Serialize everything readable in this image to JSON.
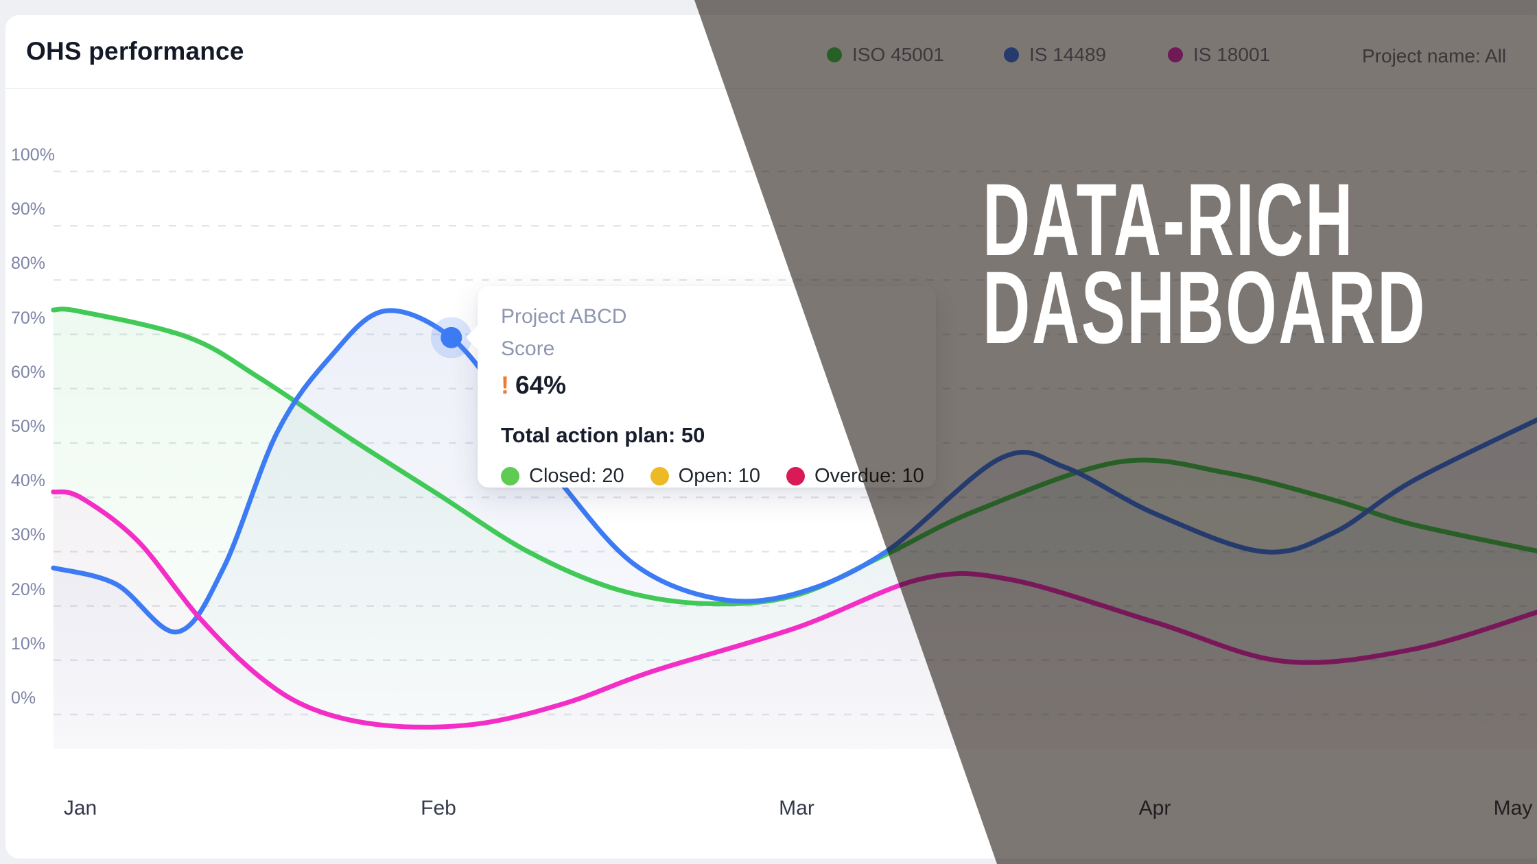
{
  "header": {
    "title": "OHS performance",
    "legend": [
      {
        "label": "ISO 45001",
        "color": "#41c957"
      },
      {
        "label": "IS 14489",
        "color": "#3c7bf3"
      },
      {
        "label": "IS 18001",
        "color": "#e32fc0"
      }
    ],
    "project_filter": "Project name: All"
  },
  "overlay_banner": {
    "line1": "DATA-RICH",
    "line2": "DASHBOARD"
  },
  "tooltip": {
    "title": "Project ABCD",
    "subtitle": "Score",
    "alert_icon": "!",
    "score": "64%",
    "total": "Total action plan: 50",
    "items": [
      {
        "label": "Closed: 20",
        "color": "#5ecb53"
      },
      {
        "label": "Open: 10",
        "color": "#ecba25"
      },
      {
        "label": "Overdue: 10",
        "color": "#d91a56"
      }
    ]
  },
  "chart_data": {
    "type": "line",
    "title": "OHS performance",
    "x_labels": [
      "Jan",
      "Feb",
      "Mar",
      "Apr",
      "May"
    ],
    "y_ticks": [
      {
        "label": "100%",
        "value": 100
      },
      {
        "label": "90%",
        "value": 90
      },
      {
        "label": "80%",
        "value": 80
      },
      {
        "label": "70%",
        "value": 70
      },
      {
        "label": "60%",
        "value": 60
      },
      {
        "label": "50%",
        "value": 50
      },
      {
        "label": "40%",
        "value": 40
      },
      {
        "label": "30%",
        "value": 30
      },
      {
        "label": "20%",
        "value": 20
      },
      {
        "label": "10%",
        "value": 10
      },
      {
        "label": "0%",
        "value": 0
      }
    ],
    "ylim": [
      0,
      100
    ],
    "grid": "dashed-horizontal",
    "legend_position": "top-right",
    "series": [
      {
        "name": "ISO 45001",
        "color": "#41c957",
        "area_top": "rgba(86,200,112,0.13)",
        "area_bottom": "rgba(86,200,112,0.015)",
        "points": [
          [
            -0.075,
            74.5
          ],
          [
            0,
            74.2
          ],
          [
            0.3,
            69.5
          ],
          [
            0.5,
            62
          ],
          [
            0.75,
            51
          ],
          [
            1.0,
            40.5
          ],
          [
            1.25,
            30
          ],
          [
            1.5,
            23
          ],
          [
            1.75,
            20.4
          ],
          [
            2.0,
            22
          ],
          [
            2.25,
            29.5
          ],
          [
            2.5,
            37.5
          ],
          [
            2.9,
            46.5
          ],
          [
            3.2,
            44.5
          ],
          [
            3.5,
            39.5
          ],
          [
            3.72,
            35
          ],
          [
            4.075,
            30
          ]
        ]
      },
      {
        "name": "IS 14489",
        "color": "#3c7bf3",
        "area_top": "rgba(128,148,208,0.18)",
        "area_bottom": "rgba(128,148,208,0.03)",
        "points": [
          [
            -0.075,
            27
          ],
          [
            0.1,
            24
          ],
          [
            0.27,
            15.2
          ],
          [
            0.4,
            27
          ],
          [
            0.55,
            52
          ],
          [
            0.7,
            66
          ],
          [
            0.85,
            74.3
          ],
          [
            1.036,
            69.4
          ],
          [
            1.2,
            56
          ],
          [
            1.35,
            42
          ],
          [
            1.55,
            27.5
          ],
          [
            1.78,
            21.3
          ],
          [
            2.0,
            22.3
          ],
          [
            2.25,
            30
          ],
          [
            2.57,
            47.2
          ],
          [
            2.75,
            45.5
          ],
          [
            3.0,
            37
          ],
          [
            3.3,
            30
          ],
          [
            3.5,
            33.5
          ],
          [
            3.72,
            43
          ],
          [
            4.075,
            54.5
          ]
        ]
      },
      {
        "name": "IS 18001",
        "color": "#f32ec6",
        "area_top": "rgba(238,70,205,0.10)",
        "area_bottom": "rgba(238,70,205,0.015)",
        "points": [
          [
            -0.075,
            41
          ],
          [
            0,
            40
          ],
          [
            0.16,
            32
          ],
          [
            0.33,
            18
          ],
          [
            0.5,
            7
          ],
          [
            0.65,
            1
          ],
          [
            0.85,
            -2
          ],
          [
            1.1,
            -1.8
          ],
          [
            1.35,
            2
          ],
          [
            1.6,
            8
          ],
          [
            2.0,
            16
          ],
          [
            2.35,
            25
          ],
          [
            2.6,
            24.8
          ],
          [
            3.0,
            17
          ],
          [
            3.36,
            9.8
          ],
          [
            3.72,
            12
          ],
          [
            4.075,
            19
          ]
        ]
      }
    ],
    "marker": {
      "series": "IS 14489",
      "x": 1.036,
      "value": 69.4
    }
  }
}
